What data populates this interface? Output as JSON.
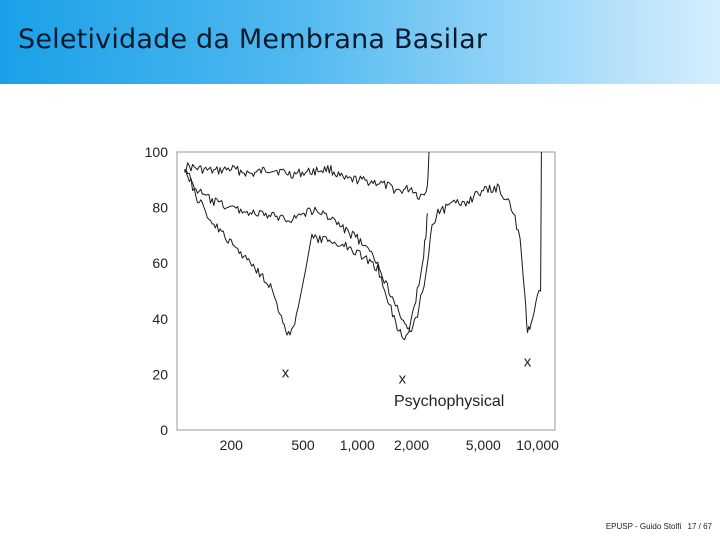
{
  "slide": {
    "title": "Seletividade da Membrana Basilar",
    "footer": {
      "author": "EPUSP - Guido Stolfi",
      "page": "17 / 67"
    }
  },
  "chart_data": {
    "type": "line",
    "title": "",
    "xlabel": "",
    "ylabel": "",
    "x_scale": "log",
    "xlim": [
      100,
      12500
    ],
    "ylim": [
      0,
      100
    ],
    "grid": false,
    "x_ticks": [
      {
        "value": 200,
        "label": "200"
      },
      {
        "value": 500,
        "label": "500"
      },
      {
        "value": 1000,
        "label": "1,000"
      },
      {
        "value": 2000,
        "label": "2,000"
      },
      {
        "value": 5000,
        "label": "5,000"
      },
      {
        "value": 10000,
        "label": "10,000"
      }
    ],
    "y_ticks": [
      0,
      20,
      40,
      60,
      80,
      100
    ],
    "annotation": "Psychophysical",
    "minimum_markers": [
      {
        "x": 400,
        "y": 26,
        "label": "x"
      },
      {
        "x": 1780,
        "y": 24,
        "label": "x"
      },
      {
        "x": 8800,
        "y": 30,
        "label": "x"
      }
    ],
    "series": [
      {
        "values": [
          [
            110,
            95
          ],
          [
            130,
            94
          ],
          [
            160,
            93
          ],
          [
            200,
            94
          ],
          [
            260,
            92
          ],
          [
            330,
            94
          ],
          [
            430,
            92
          ],
          [
            560,
            93
          ],
          [
            700,
            94
          ],
          [
            850,
            90
          ],
          [
            1000,
            90
          ],
          [
            1300,
            89
          ],
          [
            1700,
            86
          ],
          [
            2000,
            87
          ],
          [
            2200,
            84
          ],
          [
            2350,
            85
          ],
          [
            2450,
            88
          ],
          [
            2500,
            100
          ]
        ]
      },
      {
        "values": [
          [
            110,
            94
          ],
          [
            130,
            86
          ],
          [
            160,
            82
          ],
          [
            200,
            80
          ],
          [
            260,
            78
          ],
          [
            330,
            77
          ],
          [
            430,
            76
          ],
          [
            560,
            79
          ],
          [
            700,
            77
          ],
          [
            850,
            72
          ],
          [
            1000,
            69
          ],
          [
            1300,
            60
          ],
          [
            1500,
            50
          ],
          [
            1700,
            44
          ],
          [
            1800,
            38
          ],
          [
            1900,
            36
          ],
          [
            2000,
            35
          ],
          [
            2200,
            44
          ],
          [
            2400,
            56
          ],
          [
            2600,
            74
          ],
          [
            2800,
            78
          ],
          [
            3300,
            81
          ],
          [
            4000,
            82
          ],
          [
            5000,
            86
          ],
          [
            6000,
            87
          ],
          [
            7000,
            82
          ],
          [
            7500,
            76
          ],
          [
            8000,
            68
          ],
          [
            8500,
            48
          ],
          [
            8800,
            35
          ],
          [
            9200,
            38
          ],
          [
            9800,
            46
          ],
          [
            10400,
            50
          ],
          [
            10500,
            100
          ]
        ]
      },
      {
        "values": [
          [
            110,
            95
          ],
          [
            130,
            83
          ],
          [
            160,
            74
          ],
          [
            200,
            67
          ],
          [
            260,
            60
          ],
          [
            330,
            52
          ],
          [
            380,
            40
          ],
          [
            400,
            35
          ],
          [
            440,
            36
          ],
          [
            480,
            47
          ],
          [
            560,
            69
          ],
          [
            700,
            68
          ],
          [
            900,
            66
          ],
          [
            1100,
            62
          ],
          [
            1300,
            58
          ],
          [
            1450,
            49
          ],
          [
            1600,
            40
          ],
          [
            1700,
            36
          ],
          [
            1800,
            33
          ],
          [
            1900,
            34
          ],
          [
            2000,
            40
          ],
          [
            2150,
            50
          ],
          [
            2300,
            60
          ],
          [
            2400,
            70
          ],
          [
            2450,
            78
          ]
        ]
      }
    ]
  }
}
